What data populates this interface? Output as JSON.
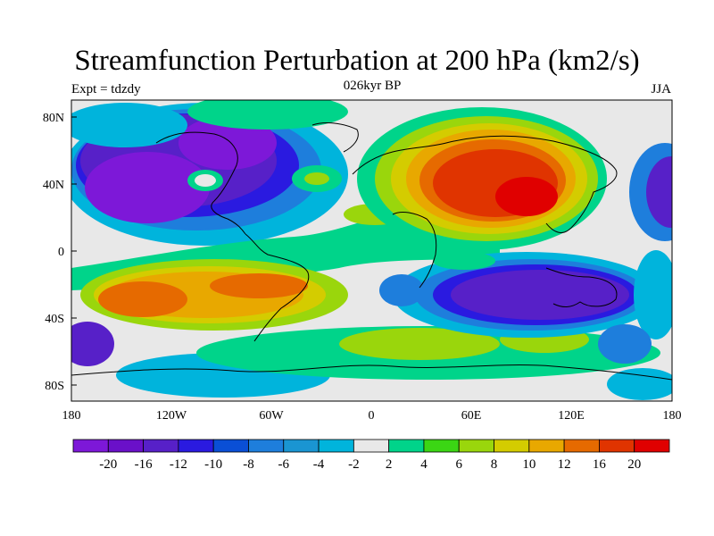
{
  "title": "Streamfunction Perturbation at 200 hPa (km2/s)",
  "left_label": "Expt = tdzdy",
  "center_label": "026kyr BP",
  "right_label": "JJA",
  "lat_ticks": [
    "80N",
    "40N",
    "0",
    "40S",
    "80S"
  ],
  "lon_ticks": [
    "180",
    "120W",
    "60W",
    "0",
    "60E",
    "120E",
    "180"
  ],
  "colorbar": {
    "colors": [
      "#7d18d8",
      "#6a10c9",
      "#5720c8",
      "#2a1ae0",
      "#0a4fd6",
      "#1e7edc",
      "#1a95d2",
      "#00b4dc",
      "#e8e8e8",
      "#00d48a",
      "#3bd614",
      "#9ad60c",
      "#d4cc00",
      "#e8a800",
      "#e66a00",
      "#e03400",
      "#e00000"
    ],
    "labels": [
      "-20",
      "-16",
      "-12",
      "-10",
      "-8",
      "-6",
      "-4",
      "-2",
      "2",
      "4",
      "6",
      "8",
      "10",
      "12",
      "16",
      "20"
    ]
  }
}
